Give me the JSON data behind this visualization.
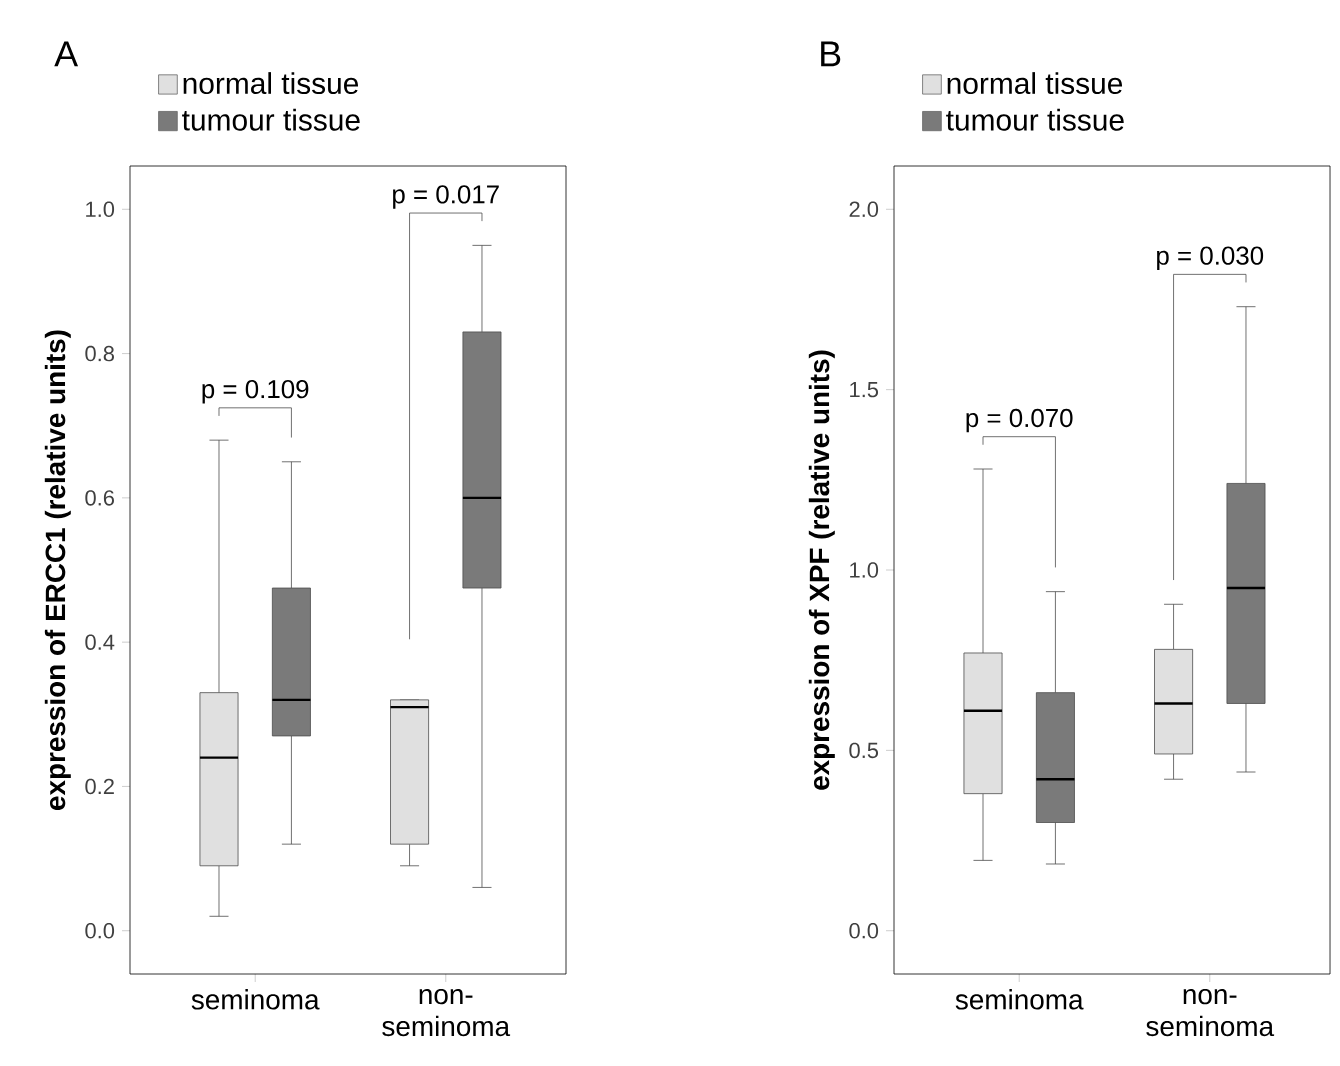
{
  "chart_data": [
    {
      "type": "box",
      "title": "A",
      "ylabel": "expression of ERCC1 (relative units)",
      "categories": [
        "seminoma",
        "non-seminoma"
      ],
      "ylim": [
        -0.06,
        1.06
      ],
      "yticks": [
        {
          "value": 0,
          "label": "0.0"
        },
        0.2,
        0.4,
        0.6,
        0.8,
        {
          "value": 1,
          "label": "1.0"
        }
      ],
      "legend": "top left",
      "grid": false,
      "series": [
        {
          "name": "normal tissue",
          "color": "#e0e0e0",
          "boxes": [
            {
              "low": 0.02,
              "q1": 0.09,
              "median": 0.24,
              "q3": 0.33,
              "high": 0.68
            },
            {
              "low": 0.09,
              "q1": 0.12,
              "median": 0.31,
              "q3": 0.32,
              "high": 0.32
            }
          ]
        },
        {
          "name": "tumour  tissue",
          "color": "#7a7a7a",
          "boxes": [
            {
              "low": 0.12,
              "q1": 0.27,
              "median": 0.32,
              "q3": 0.475,
              "high": 0.65
            },
            {
              "low": 0.06,
              "q1": 0.475,
              "median": 0.6,
              "q3": 0.83,
              "high": 0.95
            }
          ]
        }
      ],
      "annotations": [
        "p = 0.109",
        "p = 0.017"
      ]
    },
    {
      "type": "box",
      "title": "B",
      "ylabel": "expression of XPF (relative units)",
      "categories": [
        "seminoma",
        "non-seminoma"
      ],
      "ylim": [
        -0.12,
        2.12
      ],
      "yticks": [
        {
          "value": 0,
          "label": "0.0"
        },
        0.5,
        {
          "value": 1,
          "label": "1.0"
        },
        1.5,
        {
          "value": 2,
          "label": "2.0"
        }
      ],
      "legend": "top left",
      "grid": false,
      "series": [
        {
          "name": "normal tissue",
          "color": "#e0e0e0",
          "boxes": [
            {
              "low": 0.195,
              "q1": 0.38,
              "median": 0.61,
              "q3": 0.77,
              "high": 1.28
            },
            {
              "low": 0.42,
              "q1": 0.49,
              "median": 0.63,
              "q3": 0.78,
              "high": 0.905
            }
          ]
        },
        {
          "name": "tumour  tissue",
          "color": "#7a7a7a",
          "boxes": [
            {
              "low": 0.185,
              "q1": 0.3,
              "median": 0.42,
              "q3": 0.66,
              "high": 0.94
            },
            {
              "low": 0.44,
              "q1": 0.63,
              "median": 0.95,
              "q3": 1.24,
              "high": 1.73
            }
          ]
        }
      ],
      "annotations": [
        "p = 0.070",
        "p = 0.030"
      ]
    }
  ]
}
